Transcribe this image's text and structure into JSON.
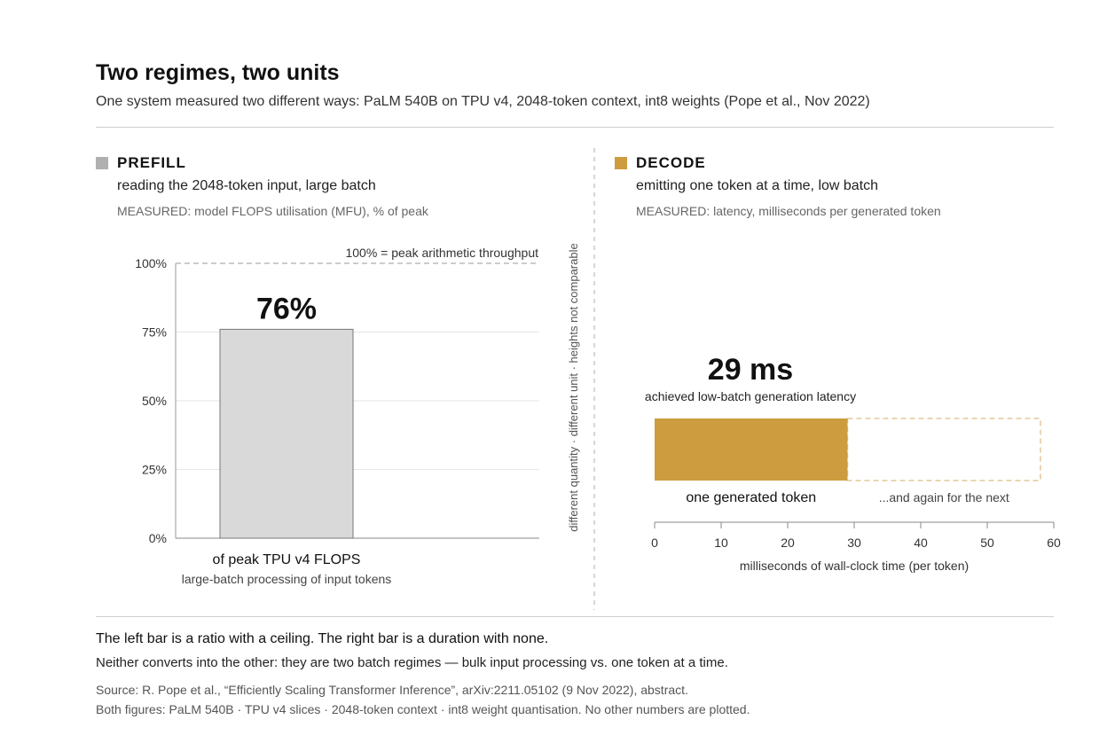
{
  "title": "Two regimes, two units",
  "subtitle": "One system measured two different ways: PaLM 540B on TPU v4, 2048-token context, int8 weights (Pope et al., Nov 2022)",
  "colors": {
    "prefill": "#b0b0b0",
    "prefill_bar": "#d9d9d9",
    "decode": "#cc9c3e",
    "rule": "#cfcfcf"
  },
  "divider_label": "different quantity · different unit · heights not comparable",
  "prefill": {
    "name": "PREFILL",
    "description": "reading the 2048-token input, large batch",
    "measured": "MEASURED: model FLOPS utilisation (MFU), % of peak",
    "ceiling_label": "100% = peak arithmetic throughput",
    "value_label": "76%",
    "bar_label": "of peak TPU v4 FLOPS",
    "bar_sublabel": "large-batch processing of input tokens"
  },
  "decode": {
    "name": "DECODE",
    "description": "emitting one token at a time, low batch",
    "measured": "MEASURED: latency, milliseconds per generated token",
    "value_label": "29 ms",
    "caption": "achieved low-batch generation latency",
    "bar_label": "one generated token",
    "next_label": "...and again for the next",
    "xlabel": "milliseconds of wall-clock time (per token)"
  },
  "chart_data": [
    {
      "type": "bar",
      "title": "PREFILL",
      "categories": [
        "of peak TPU v4 FLOPS"
      ],
      "values": [
        76
      ],
      "ylim": [
        0,
        100
      ],
      "yticks": [
        "0%",
        "25%",
        "50%",
        "75%",
        "100%"
      ],
      "ylabel": "",
      "xlabel": ""
    },
    {
      "type": "bar",
      "orientation": "horizontal",
      "title": "DECODE",
      "categories": [
        "one generated token",
        "...and again for the next"
      ],
      "values": [
        29,
        29
      ],
      "xlim": [
        0,
        60
      ],
      "xticks": [
        "0",
        "10",
        "20",
        "30",
        "40",
        "50",
        "60"
      ],
      "xlabel": "milliseconds of wall-clock time (per token)"
    }
  ],
  "footer": {
    "note1": "The left bar is a ratio with a ceiling. The right bar is a duration with none.",
    "note2": "Neither converts into the other: they are two batch regimes — bulk input processing vs. one token at a time.",
    "source1": "Source: R. Pope et al., “Efficiently Scaling Transformer Inference”, arXiv:2211.05102 (9 Nov 2022), abstract.",
    "source2": "Both figures: PaLM 540B · TPU v4 slices · 2048-token context · int8 weight quantisation. No other numbers are plotted."
  }
}
